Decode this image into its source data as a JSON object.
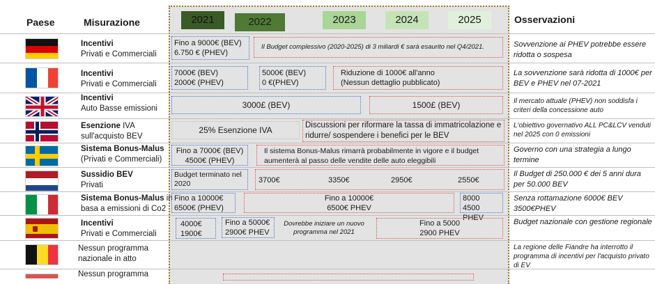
{
  "headers": {
    "country": "Paese",
    "measure": "Misurazione",
    "notes": "Osservazioni"
  },
  "years": [
    {
      "label": "2021",
      "color": "#3a5a26"
    },
    {
      "label": "2022",
      "color": "#4f7a34"
    },
    {
      "label": "2023",
      "color": "#a9d597"
    },
    {
      "label": "2024",
      "color": "#c6e3b8"
    },
    {
      "label": "2025",
      "color": "#e1f0da"
    }
  ],
  "rows": [
    {
      "country": "germany",
      "measure_title": "Incentivi",
      "measure_sub": "Privati e Commerciali",
      "cells": [
        "Fino a 9000€ (BEV)",
        "6.750 € (PHEV)",
        "Il Budget complessivo (2020-2025) di 3 miliardi € sarà esaurito nel Q4/2021."
      ],
      "notes": "Sovvenzione ai PHEV potrebbe essere ridotta o sospesa"
    },
    {
      "country": "france",
      "measure_title": "Incentivi",
      "measure_sub": "Privati e Commerciali",
      "cells": [
        "7000€ (BEV)",
        "2000€ (PHEV)",
        "5000€ (BEV)",
        "0 €(PHEV)",
        "Riduzione di 1000€ all'anno",
        "(Nessun dettaglio pubblicato)"
      ],
      "notes": "La sovvenzione sarà ridotta di 1000€ per BEV e PHEV nel 07-2021"
    },
    {
      "country": "uk",
      "measure_title": "Incentivi",
      "measure_sub": "Auto Basse emissioni",
      "cells": [
        "3000£ (BEV)",
        "1500£ (BEV)"
      ],
      "notes": "Il mercato attuale (PHEV) non soddisfa i criteri della concessione auto"
    },
    {
      "country": "norway",
      "measure_title": "Esenzione",
      "measure_title_suffix": " IVA",
      "measure_sub": "sull'acquisto BEV",
      "cells": [
        "25% Esenzione IVA",
        "Discussioni per riformare la tassa di immatricolazione e ridurre/ sospendere i benefici per le BEV"
      ],
      "notes": "L'obiettivo governativo ALL PC&LCV venduti nel 2025 con 0 emissioni"
    },
    {
      "country": "sweden",
      "measure_title": "Sistema Bonus-Malus",
      "measure_sub": "(Privati e Commerciali)",
      "cells": [
        "Fino a 7000€ (BEV)",
        "4500€ (PHEV)",
        "Il sistema Bonus-Malus rimarrà probabilmente in vigore e il budget aumenterà al passo delle vendite delle auto eleggibili"
      ],
      "notes": "Governo con una strategia a lungo termine"
    },
    {
      "country": "netherlands",
      "measure_title": "Sussidio BEV",
      "measure_sub": "Privati",
      "cells": [
        "Budget terminato nel 2020",
        "3700€",
        "3350€",
        "2950€",
        "2550€"
      ],
      "notes": "Il Budget di 250.000 € dei 5 anni dura per 50.000 BEV"
    },
    {
      "country": "italy",
      "measure_title": "Sistema Bonus-Malus",
      "measure_title_suffix": " in",
      "measure_sub": "basa  a emissioni di Co2",
      "cells": [
        "Fino a 10000€",
        "6500€ (PHEV)",
        "Fino a 10000€",
        "6500€ PHEV",
        "8000",
        "4500 PHEV"
      ],
      "notes": "Senza rottamazione 6000€ BEV  3500€PHEV"
    },
    {
      "country": "spain",
      "measure_title": "Incentivi",
      "measure_sub": "Privati e Commerciali",
      "cells": [
        "4000€",
        "1900€",
        "Fino a 5000€",
        "2900€ PHEV",
        "Dovrebbe iniziare un nuovo programma nel 2021",
        "Fino a 5000",
        "2900 PHEV"
      ],
      "notes": "Budget nazionale con gestione regionale"
    },
    {
      "country": "belgium",
      "measure_title": "Nessun programma",
      "measure_sub": "nazionale in atto",
      "cells": [],
      "notes": "La regione delle Fiandre ha interrotto il programma di incentivi per l'acquisto privato di EV"
    },
    {
      "country": "partial",
      "measure_title": "Nessun programma",
      "measure_sub": "",
      "cells": [],
      "notes": ""
    }
  ]
}
